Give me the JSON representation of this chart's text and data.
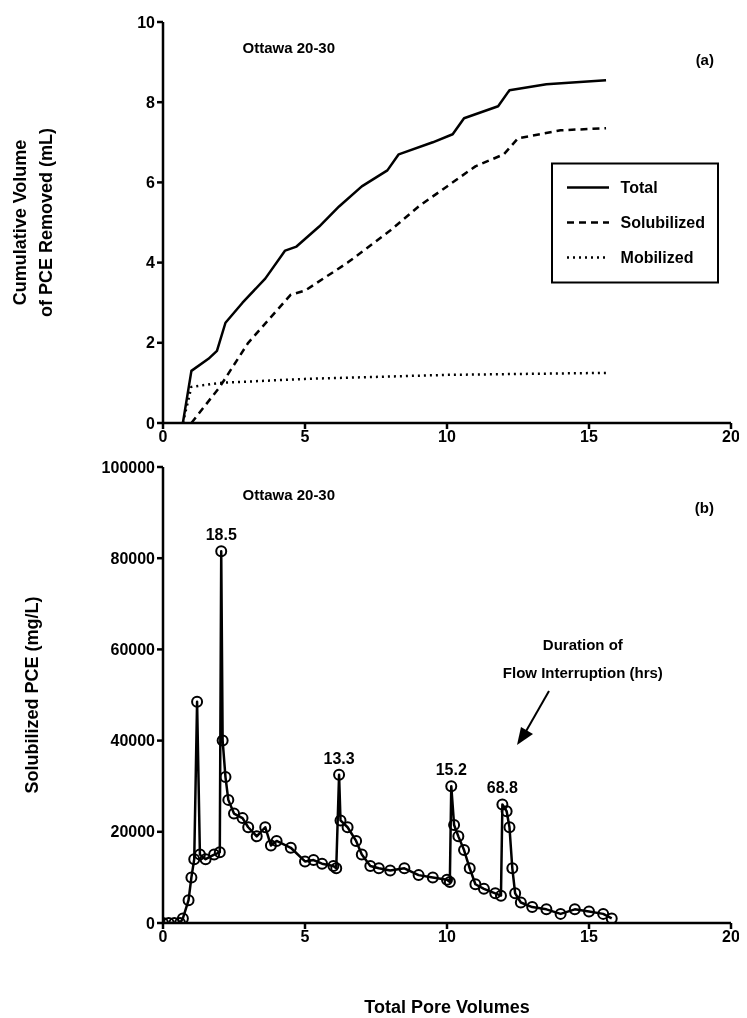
{
  "chart_data": [
    {
      "type": "line",
      "ylabel": "Cumulative Volume\nof PCE Removed (mL)",
      "xlim": [
        0,
        20
      ],
      "xticks": [
        0,
        5,
        10,
        15,
        20
      ],
      "ylim": [
        0,
        10
      ],
      "yticks": [
        0,
        2,
        4,
        6,
        8,
        10
      ],
      "grid": false,
      "legend": "right",
      "marker": "none",
      "annotations": [
        "Ottawa 20-30",
        "(a)"
      ],
      "series": [
        {
          "name": "Total",
          "color": "#000000",
          "line_style": "solid",
          "x": [
            0.7,
            1.0,
            1.6,
            1.9,
            2.2,
            2.8,
            3.6,
            4.3,
            4.7,
            5.5,
            6.2,
            7.0,
            7.9,
            8.3,
            9.5,
            10.2,
            10.6,
            11.8,
            12.2,
            13.5,
            15.6
          ],
          "values": [
            0,
            1.3,
            1.6,
            1.8,
            2.5,
            3.0,
            3.6,
            4.3,
            4.4,
            4.9,
            5.4,
            5.9,
            6.3,
            6.7,
            7.0,
            7.2,
            7.6,
            7.9,
            8.3,
            8.45,
            8.55
          ]
        },
        {
          "name": "Solubilized",
          "color": "#000000",
          "line_style": "dashed",
          "x": [
            1.0,
            2.0,
            3.0,
            4.5,
            5.0,
            6.5,
            8.0,
            9.0,
            10.0,
            11.0,
            12.0,
            12.5,
            14.0,
            15.6
          ],
          "values": [
            0,
            0.9,
            2.0,
            3.2,
            3.3,
            4.0,
            4.8,
            5.4,
            5.9,
            6.4,
            6.7,
            7.1,
            7.3,
            7.35
          ]
        },
        {
          "name": "Mobilized",
          "color": "#000000",
          "line_style": "dotted",
          "x": [
            0.7,
            1.0,
            2.0,
            5.0,
            10.0,
            15.6
          ],
          "values": [
            0,
            0.9,
            1.0,
            1.1,
            1.2,
            1.25
          ]
        }
      ]
    },
    {
      "type": "line",
      "xlabel": "Total Pore Volumes",
      "ylabel": "Solubilized PCE (mg/L)",
      "xlim": [
        0,
        20
      ],
      "xticks": [
        0,
        5,
        10,
        15,
        20
      ],
      "ylim": [
        0,
        100000
      ],
      "yticks": [
        0,
        20000,
        40000,
        60000,
        80000,
        100000
      ],
      "grid": false,
      "legend": false,
      "marker": "circle",
      "line_style": "solid",
      "annotations": [
        "Ottawa 20-30",
        "(b)",
        "Duration of\nFlow Interruption (hrs)",
        {
          "text": "18.5",
          "x": 2.05,
          "y": 81500
        },
        {
          "text": "13.3",
          "x": 6.2,
          "y": 32500
        },
        {
          "text": "15.2",
          "x": 10.15,
          "y": 30000
        },
        {
          "text": "68.8",
          "x": 11.95,
          "y": 26000
        }
      ],
      "series": [
        {
          "color": "#000000",
          "x": [
            0,
            0.2,
            0.4,
            0.6,
            0.7,
            0.9,
            1.0,
            1.1,
            1.2,
            1.3,
            1.5,
            1.8,
            2.0,
            2.05,
            2.1,
            2.2,
            2.3,
            2.5,
            2.8,
            3.0,
            3.3,
            3.6,
            3.8,
            4.0,
            4.5,
            5.0,
            5.3,
            5.6,
            6.0,
            6.1,
            6.2,
            6.25,
            6.5,
            6.8,
            7.0,
            7.3,
            7.6,
            8.0,
            8.5,
            9.0,
            9.5,
            10.0,
            10.1,
            10.15,
            10.25,
            10.4,
            10.6,
            10.8,
            11.0,
            11.3,
            11.7,
            11.9,
            11.95,
            12.1,
            12.2,
            12.3,
            12.4,
            12.6,
            13.0,
            13.5,
            14.0,
            14.5,
            15.0,
            15.5,
            15.8
          ],
          "values": [
            0,
            0,
            0,
            0,
            1000,
            5000,
            10000,
            14000,
            48500,
            15000,
            14000,
            15000,
            15500,
            81500,
            40000,
            32000,
            27000,
            24000,
            23000,
            21000,
            19000,
            21000,
            17000,
            18000,
            16500,
            13500,
            13800,
            13000,
            12500,
            12000,
            32500,
            22500,
            21000,
            18000,
            15000,
            12500,
            12000,
            11500,
            12000,
            10500,
            10000,
            9500,
            9000,
            30000,
            21500,
            19000,
            16000,
            12000,
            8500,
            7500,
            6500,
            6000,
            26000,
            24500,
            21000,
            12000,
            6500,
            4500,
            3500,
            3000,
            2000,
            3000,
            2500,
            2000,
            1000
          ]
        }
      ]
    }
  ]
}
